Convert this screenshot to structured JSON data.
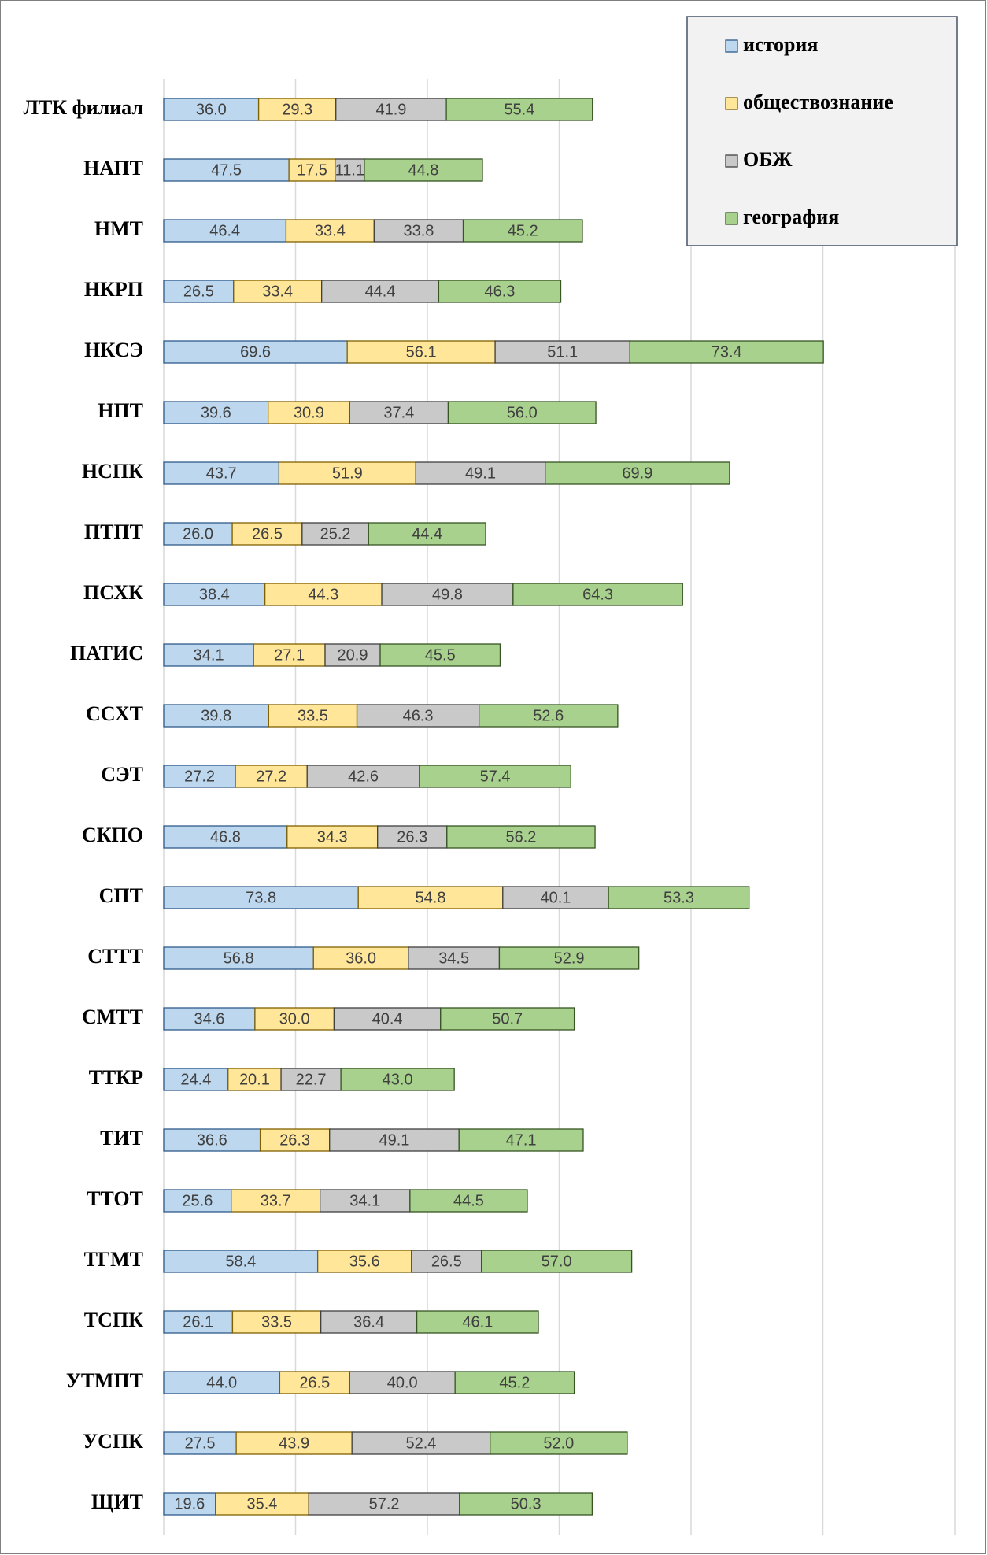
{
  "chart_data": {
    "type": "stacked-bar-horizontal",
    "categories": [
      "ЛТК филиал",
      "НАПТ",
      "НМТ",
      "НКРП",
      "НКСЭ",
      "НПТ",
      "НСПК",
      "ПТПТ",
      "ПСХК",
      "ПАТИС",
      "ССХТ",
      "СЭТ",
      "СКПО",
      "СПТ",
      "СТТТ",
      "СМТТ",
      "ТТКР",
      "ТИТ",
      "ТТОТ",
      "ТГМТ",
      "ТСПК",
      "УТМПТ",
      "УСПК",
      "ЩИТ"
    ],
    "series": [
      {
        "name": "история",
        "color": "#bdd7ee",
        "values": [
          36.0,
          47.5,
          46.4,
          26.5,
          69.6,
          39.6,
          43.7,
          26.0,
          38.4,
          34.1,
          39.8,
          27.2,
          46.8,
          73.8,
          56.8,
          34.6,
          24.4,
          36.6,
          25.6,
          58.4,
          26.1,
          44.0,
          27.5,
          19.6
        ],
        "value_labels": [
          "36.0",
          "47.5",
          "46.4",
          "26.5",
          "69.6",
          "39.6",
          "43.7",
          "26.0",
          "38.4",
          "34.1",
          "39.8",
          "27.2",
          "46.8",
          "73.8",
          "56.8",
          "34.6",
          "24.4",
          "36.6",
          "25.6",
          "58.4",
          "26.1",
          "44.0",
          "27.5",
          "19.6"
        ]
      },
      {
        "name": "обществознание",
        "color": "#ffe699",
        "values": [
          29.3,
          17.5,
          33.4,
          33.4,
          56.1,
          30.9,
          51.9,
          26.5,
          44.3,
          27.1,
          33.5,
          27.2,
          34.3,
          54.8,
          36.0,
          30.0,
          20.1,
          26.3,
          33.7,
          35.6,
          33.5,
          26.5,
          43.9,
          35.4
        ],
        "value_labels": [
          "29.3",
          "17.5",
          "33.4",
          "33.4",
          "56.1",
          "30.9",
          "51.9",
          "26.5",
          "44.3",
          "27.1",
          "33.5",
          "27.2",
          "34.3",
          "54.8",
          "36.0",
          "30.0",
          "20.1",
          "26.3",
          "33.7",
          "35.6",
          "33.5",
          "26.5",
          "43.9",
          "35.4"
        ]
      },
      {
        "name": "ОБЖ",
        "color": "#c9c9c9",
        "values": [
          41.9,
          11.1,
          33.8,
          44.4,
          51.1,
          37.4,
          49.1,
          25.2,
          49.8,
          20.9,
          46.3,
          42.6,
          26.3,
          40.1,
          34.5,
          40.4,
          22.7,
          49.1,
          34.1,
          26.5,
          36.4,
          40.0,
          52.4,
          57.2
        ],
        "value_labels": [
          "41.9",
          "11.1",
          "33.8",
          "44.4",
          "51.1",
          "37.4",
          "49.1",
          "25.2",
          "49.8",
          "20.9",
          "46.3",
          "42.6",
          "26.3",
          "40.1",
          "34.5",
          "40.4",
          "22.7",
          "49.1",
          "34.1",
          "26.5",
          "36.4",
          "40.0",
          "52.4",
          "57.2"
        ]
      },
      {
        "name": "география",
        "color": "#a9d18e",
        "values": [
          55.4,
          44.8,
          45.2,
          46.3,
          73.4,
          56.0,
          69.9,
          44.4,
          64.3,
          45.5,
          52.6,
          57.4,
          56.2,
          53.3,
          52.9,
          50.7,
          43.0,
          47.1,
          44.5,
          57.0,
          46.1,
          45.2,
          52.0,
          50.3
        ],
        "value_labels": [
          "55.4",
          "44.8",
          "45.2",
          "46.3",
          "73.4",
          "56.0",
          "69.9",
          "44.4",
          "64.3",
          "45.5",
          "52.6",
          "57.4",
          "56.2",
          "53.3",
          "52.9",
          "50.7",
          "43.0",
          "47.1",
          "44.5",
          "57.0",
          "46.1",
          "45.2",
          "52.0",
          "50.3"
        ]
      }
    ],
    "xlim": [
      0,
      300
    ],
    "xticks": [
      0,
      50,
      100,
      150,
      200,
      250,
      300
    ],
    "grid": true,
    "legend": "top-right"
  }
}
